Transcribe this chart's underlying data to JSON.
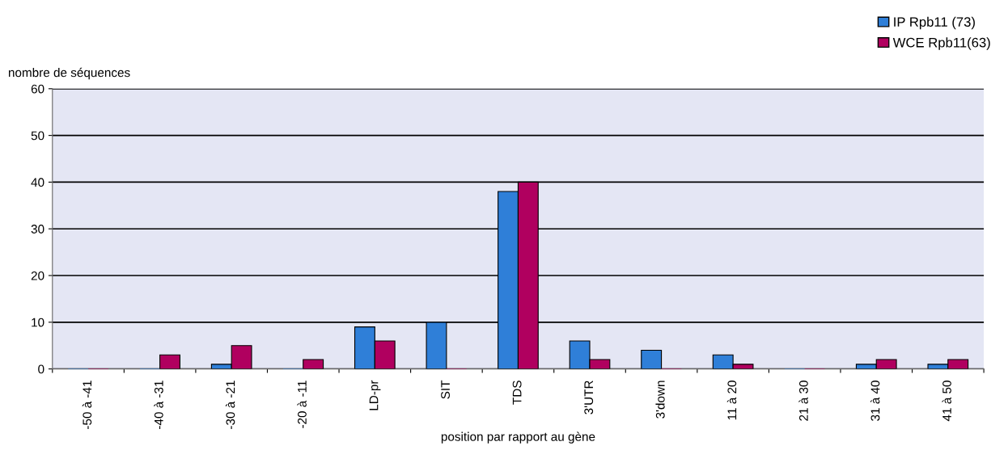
{
  "chart_data": {
    "type": "bar",
    "ylabel": "nombre de séquences",
    "xlabel": "position par rapport au gène",
    "categories": [
      "-50 à -41",
      "-40 à -31",
      "-30 à -21",
      "-20 à -11",
      "LD-pr",
      "SIT",
      "TDS",
      "3'UTR",
      "3'down",
      "11 à 20",
      "21 à 30",
      "31 à 40",
      "41 à 50"
    ],
    "series": [
      {
        "name": "IP Rpb11 (73)",
        "color": "#2f7fd8",
        "values": [
          0,
          0,
          1,
          0,
          9,
          10,
          38,
          6,
          4,
          3,
          0,
          1,
          1
        ]
      },
      {
        "name": "WCE Rpb11(63)",
        "color": "#b0005f",
        "values": [
          0,
          3,
          5,
          2,
          6,
          0,
          40,
          2,
          0,
          1,
          0,
          2,
          2
        ]
      }
    ],
    "ylim": [
      0,
      60
    ],
    "yticks": [
      0,
      10,
      20,
      30,
      40,
      50,
      60
    ],
    "grid": "y",
    "legend": "top right"
  }
}
